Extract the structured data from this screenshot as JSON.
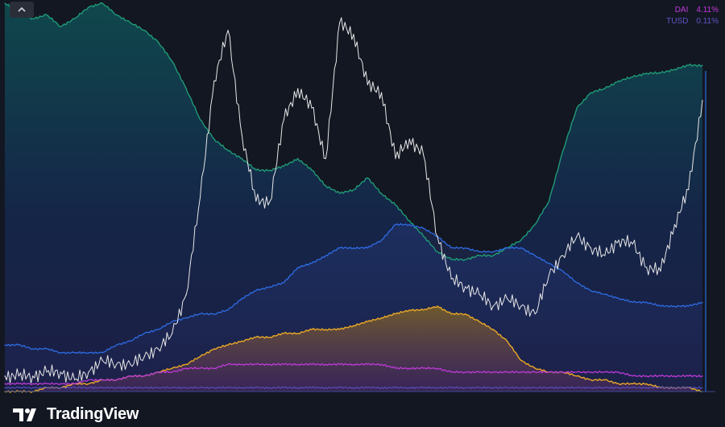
{
  "legend": [
    {
      "name": "DAI",
      "value": "4.11%",
      "color": "#c03ad9"
    },
    {
      "name": "TUSD",
      "value": "0.11%",
      "color": "#5e55c9"
    }
  ],
  "brand": {
    "name": "TradingView"
  },
  "icons": {
    "collapse": "chevron-up-icon",
    "logo": "tradingview-logo-icon"
  },
  "chart_data": {
    "type": "area",
    "title": "",
    "xlabel": "",
    "ylabel": "",
    "x": [
      0,
      2,
      4,
      6,
      8,
      10,
      12,
      14,
      16,
      18,
      20,
      22,
      24,
      26,
      28,
      30,
      32,
      34,
      36,
      38,
      40,
      42,
      44,
      46,
      48,
      50,
      52,
      54,
      56,
      58,
      60,
      62,
      64,
      66,
      68,
      70,
      72,
      74,
      76,
      78,
      80,
      82,
      84,
      86,
      88,
      90,
      92,
      94,
      96,
      98,
      100
    ],
    "ylim": [
      0,
      100
    ],
    "grid": false,
    "legend_position": "top-right",
    "series": [
      {
        "color": "#1f9a78",
        "values": [
          100,
          98,
          96,
          97,
          94,
          96,
          99,
          100,
          97,
          95,
          93,
          90,
          85,
          78,
          70,
          65,
          62,
          60,
          57,
          57,
          58,
          60,
          57,
          53,
          51,
          52,
          55,
          51,
          48,
          44,
          40,
          36,
          34,
          34,
          35,
          35,
          37,
          39,
          43,
          49,
          62,
          73,
          77,
          78,
          80,
          81,
          82,
          82,
          83,
          84,
          84
        ]
      },
      {
        "color": "#2e6ce6",
        "values": [
          12,
          12,
          11,
          11,
          10,
          10,
          10,
          10,
          12,
          13,
          15,
          16,
          18,
          19,
          20,
          20,
          21,
          24,
          26,
          27,
          28,
          32,
          33,
          35,
          37,
          37,
          37,
          39,
          43,
          43,
          42,
          40,
          37,
          37,
          36,
          36,
          37,
          37,
          35,
          33,
          31,
          28,
          26,
          25,
          24,
          23,
          23,
          22,
          22,
          22,
          23
        ]
      },
      {
        "color": "#e9a825",
        "values": [
          0,
          0,
          0,
          1,
          1,
          2,
          2,
          3,
          3,
          4,
          4,
          5,
          6,
          7,
          9,
          11,
          12,
          13,
          14,
          14,
          15,
          15,
          16,
          16,
          16,
          17,
          18,
          19,
          20,
          21,
          21,
          22,
          20,
          20,
          18,
          16,
          13,
          8,
          6,
          5,
          5,
          4,
          3,
          3,
          2,
          2,
          2,
          1,
          1,
          1,
          0
        ]
      },
      {
        "color": "#c03ad9",
        "values": [
          2,
          2,
          2,
          2,
          2,
          2,
          3,
          3,
          3,
          4,
          4,
          5,
          5,
          6,
          6,
          6,
          7,
          7,
          7,
          7,
          7,
          7,
          7,
          7,
          7,
          7,
          7,
          7,
          6,
          6,
          6,
          6,
          5,
          5,
          5,
          5,
          5,
          5,
          5,
          5,
          5,
          5,
          5,
          5,
          5,
          4,
          4,
          4,
          4,
          4,
          4
        ]
      },
      {
        "name": "TUSD",
        "color": "#5e55c9",
        "values": [
          1,
          1,
          1,
          1,
          1,
          1,
          1,
          1,
          1,
          1,
          1,
          1,
          1,
          1,
          1,
          1,
          1,
          1,
          1,
          1,
          1,
          1,
          1,
          1,
          1,
          1,
          1,
          1,
          1,
          1,
          1,
          1,
          1,
          1,
          1,
          1,
          1,
          1,
          1,
          1,
          1,
          1,
          1,
          1,
          1,
          1,
          1,
          1,
          1,
          1,
          1
        ]
      },
      {
        "color": "#e6e6e6",
        "values": [
          4,
          4,
          4,
          5,
          5,
          3,
          5,
          8,
          7,
          7,
          9,
          11,
          15,
          25,
          50,
          80,
          93,
          66,
          49,
          49,
          70,
          78,
          73,
          60,
          95,
          92,
          79,
          77,
          60,
          65,
          61,
          40,
          29,
          27,
          25,
          22,
          24,
          22,
          20,
          30,
          35,
          40,
          37,
          35,
          39,
          38,
          32,
          31,
          43,
          52,
          75
        ]
      }
    ]
  }
}
